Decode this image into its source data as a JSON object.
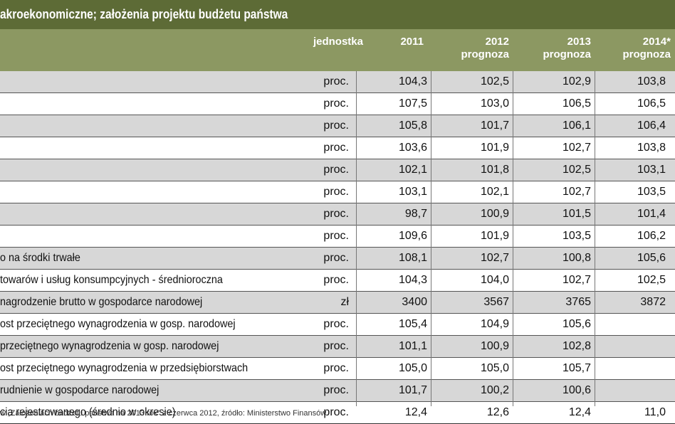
{
  "title": "akroekonomiczne; założenia projektu budżetu państwa",
  "columns": {
    "unit": "jednostka",
    "y2011": "2011",
    "y2012": "2012",
    "y2012_sub": "prognoza",
    "y2013": "2013",
    "y2013_sub": "prognoza",
    "y2014": "2014*",
    "y2014_sub": "prognoza"
  },
  "rows": [
    {
      "label": "",
      "unit": "proc.",
      "v2011": "104,3",
      "v2012": "102,5",
      "v2013": "102,9",
      "v2014": "103,8"
    },
    {
      "label": "",
      "unit": "proc.",
      "v2011": "107,5",
      "v2012": "103,0",
      "v2013": "106,5",
      "v2014": "106,5"
    },
    {
      "label": "",
      "unit": "proc.",
      "v2011": "105,8",
      "v2012": "101,7",
      "v2013": "106,1",
      "v2014": "106,4"
    },
    {
      "label": "",
      "unit": "proc.",
      "v2011": "103,6",
      "v2012": "101,9",
      "v2013": "102,7",
      "v2014": "103,8"
    },
    {
      "label": "",
      "unit": "proc.",
      "v2011": "102,1",
      "v2012": "101,8",
      "v2013": "102,5",
      "v2014": "103,1"
    },
    {
      "label": "",
      "unit": "proc.",
      "v2011": "103,1",
      "v2012": "102,1",
      "v2013": "102,7",
      "v2014": "103,5"
    },
    {
      "label": "",
      "unit": "proc.",
      "v2011": "98,7",
      "v2012": "100,9",
      "v2013": "101,5",
      "v2014": "101,4"
    },
    {
      "label": "",
      "unit": "proc.",
      "v2011": "109,6",
      "v2012": "101,9",
      "v2013": "103,5",
      "v2014": "106,2"
    },
    {
      "label": "o na środki trwałe",
      "unit": "proc.",
      "v2011": "108,1",
      "v2012": "102,7",
      "v2013": "100,8",
      "v2014": "105,6"
    },
    {
      "label": "towarów i usług konsumpcyjnych - średnioroczna",
      "unit": "proc.",
      "v2011": "104,3",
      "v2012": "104,0",
      "v2013": "102,7",
      "v2014": "102,5"
    },
    {
      "label": "nagrodzenie brutto w gospodarce narodowej",
      "unit": "zł",
      "v2011": "3400",
      "v2012": "3567",
      "v2013": "3765",
      "v2014": "3872"
    },
    {
      "label": "ost przeciętnego wynagrodzenia w gosp. narodowej",
      "unit": "proc.",
      "v2011": "105,4",
      "v2012": "104,9",
      "v2013": "105,6",
      "v2014": ""
    },
    {
      "label": "przeciętnego wynagrodzenia w gosp. narodowej",
      "unit": "proc.",
      "v2011": "101,1",
      "v2012": "100,9",
      "v2013": "102,8",
      "v2014": ""
    },
    {
      "label": "ost przeciętnego wynagrodzenia w przedsiębiorstwach",
      "unit": "proc.",
      "v2011": "105,0",
      "v2012": "105,0",
      "v2013": "105,7",
      "v2014": ""
    },
    {
      "label": "rudnienie w gospodarce narodowej",
      "unit": "proc.",
      "v2011": "101,7",
      "v2012": "100,2",
      "v2013": "100,6",
      "v2014": ""
    },
    {
      "label": "cia rejestrowanego (średnio w okresie)",
      "unit": "proc.",
      "v2011": "12,4",
      "v2012": "12,6",
      "v2013": "12,4",
      "v2014": "11,0"
    }
  ],
  "source": "w „Założeniach budżetu państwa na 2013 rok\" z czerwca 2012, źródło: Ministerstwo Finansów"
}
